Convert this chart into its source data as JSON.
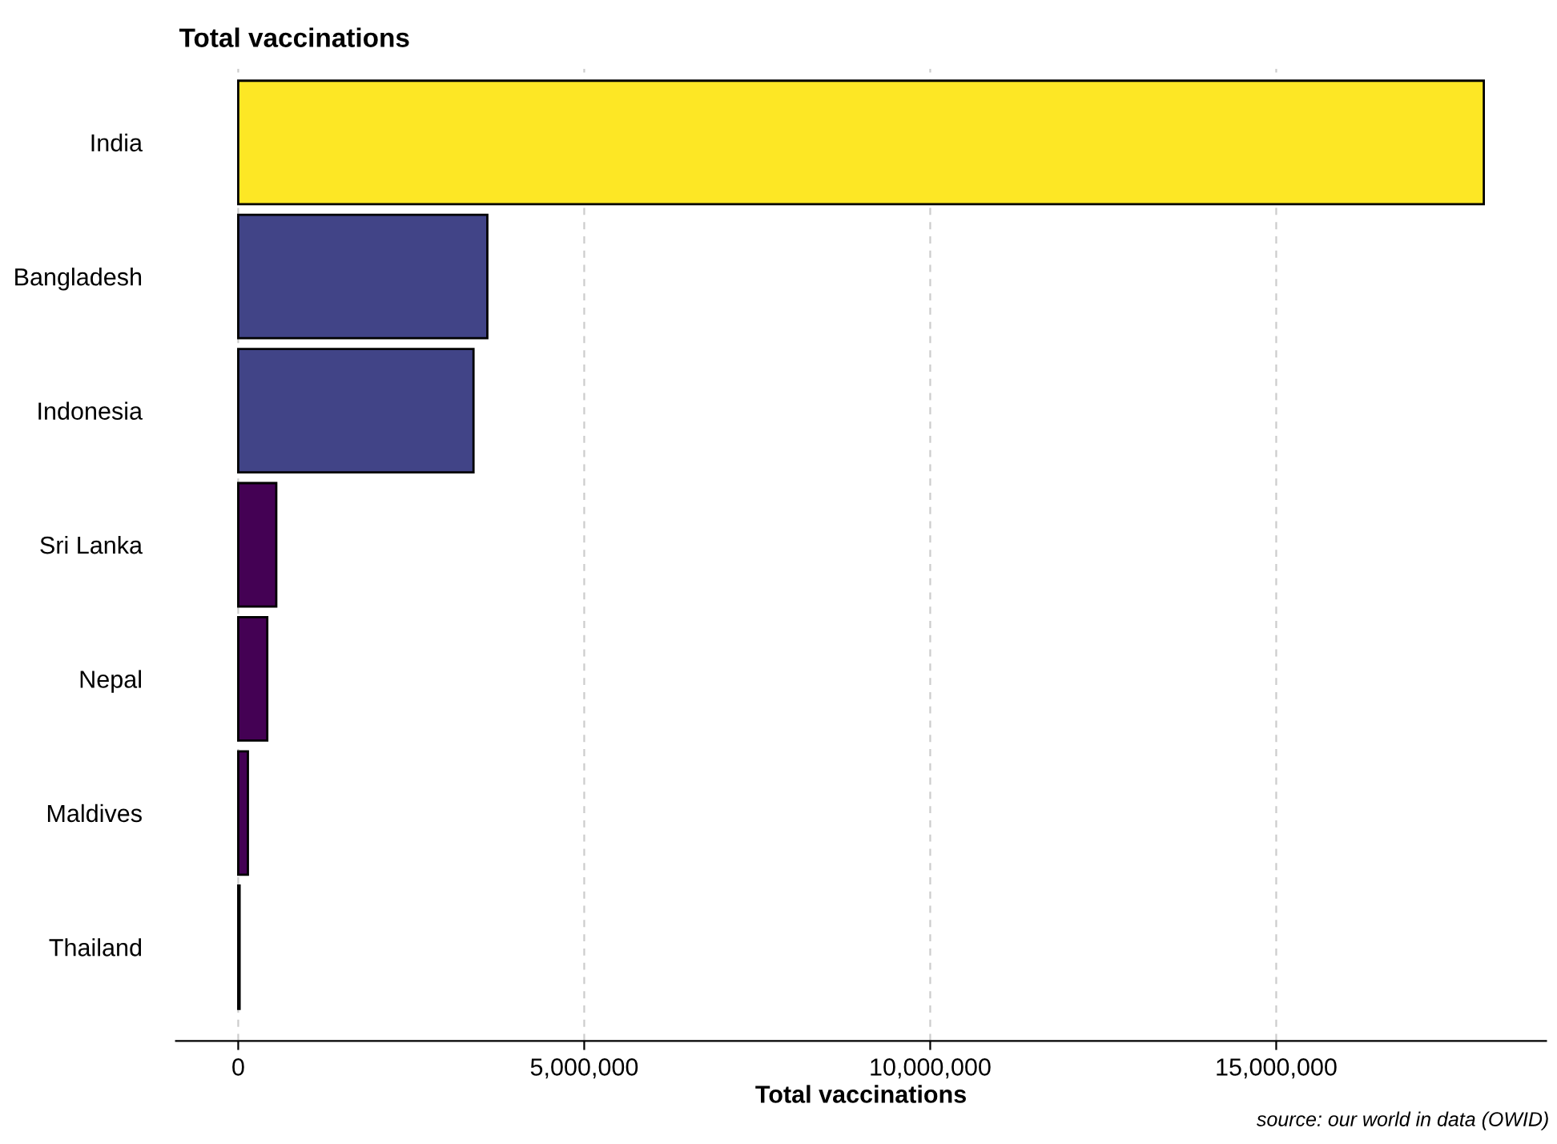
{
  "chart_data": {
    "type": "bar",
    "orientation": "horizontal",
    "title": "Total vaccinations",
    "xlabel": "Total vaccinations",
    "categories": [
      "India",
      "Bangladesh",
      "Indonesia",
      "Sri Lanka",
      "Nepal",
      "Maldives",
      "Thailand"
    ],
    "values": [
      18000000,
      3600000,
      3400000,
      550000,
      420000,
      140000,
      20000
    ],
    "colors": [
      "#fde725",
      "#414487",
      "#414487",
      "#440154",
      "#440154",
      "#440154",
      "#440154"
    ],
    "xlim": [
      -900000,
      18900000
    ],
    "xticks": [
      0,
      {
        "value": 5000000,
        "label": "5,000,000"
      },
      {
        "value": 10000000,
        "label": "10,000,000"
      },
      {
        "value": 15000000,
        "label": "15,000,000"
      }
    ],
    "grid": "x",
    "legend": false,
    "annotations": [
      "source: our world in data (OWID)"
    ]
  }
}
